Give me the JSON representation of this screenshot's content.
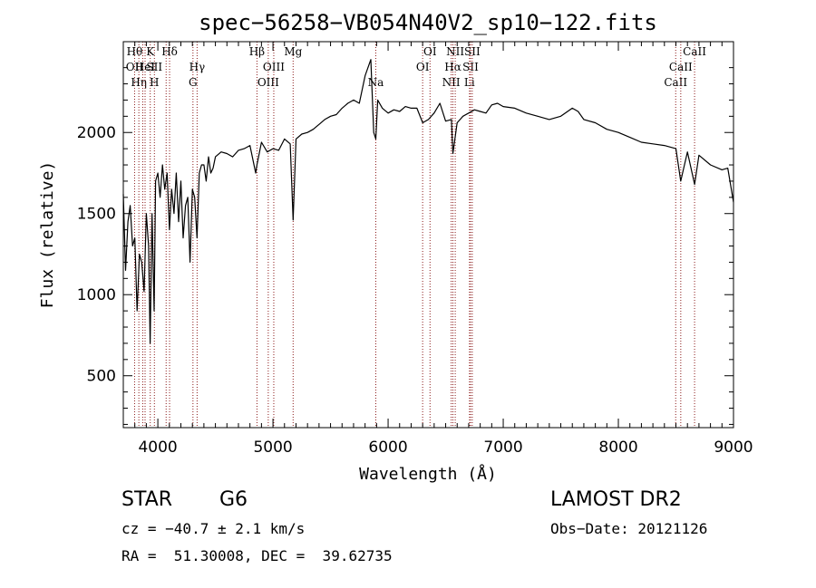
{
  "chart_data": {
    "type": "line",
    "title": "spec−56258−VB054N40V2_sp10−122.fits",
    "xlabel": "Wavelength (Å)",
    "ylabel": "Flux (relative)",
    "xlim": [
      3700,
      9000
    ],
    "ylim": [
      180,
      2560
    ],
    "xticks": [
      {
        "value": 4000,
        "label": "4000"
      },
      {
        "value": 5000,
        "label": "5000"
      },
      {
        "value": 6000,
        "label": "6000"
      },
      {
        "value": 7000,
        "label": "7000"
      },
      {
        "value": 8000,
        "label": "8000"
      },
      {
        "value": 9000,
        "label": "9000"
      }
    ],
    "yticks": [
      {
        "value": 500,
        "label": "500"
      },
      {
        "value": 1000,
        "label": "1000"
      },
      {
        "value": 1500,
        "label": "1500"
      },
      {
        "value": 2000,
        "label": "2000"
      }
    ],
    "grid": false,
    "legend": "none",
    "line_color": "#000000",
    "marker_color": "#8b1a1a",
    "series": [
      {
        "x": [
          3700,
          3720,
          3740,
          3760,
          3780,
          3800,
          3820,
          3840,
          3860,
          3880,
          3900,
          3920,
          3933,
          3950,
          3968,
          3980,
          4000,
          4020,
          4040,
          4060,
          4080,
          4101,
          4120,
          4140,
          4160,
          4180,
          4200,
          4220,
          4240,
          4260,
          4280,
          4300,
          4320,
          4340,
          4360,
          4380,
          4400,
          4420,
          4440,
          4460,
          4480,
          4500,
          4550,
          4600,
          4650,
          4700,
          4750,
          4800,
          4850,
          4861,
          4900,
          4950,
          5000,
          5050,
          5100,
          5150,
          5175,
          5200,
          5250,
          5300,
          5350,
          5400,
          5450,
          5500,
          5550,
          5600,
          5650,
          5700,
          5750,
          5800,
          5850,
          5875,
          5893,
          5910,
          5950,
          6000,
          6050,
          6100,
          6150,
          6200,
          6250,
          6300,
          6350,
          6400,
          6450,
          6500,
          6550,
          6563,
          6600,
          6650,
          6700,
          6750,
          6800,
          6850,
          6900,
          6950,
          7000,
          7100,
          7200,
          7300,
          7400,
          7500,
          7600,
          7650,
          7700,
          7800,
          7900,
          8000,
          8100,
          8200,
          8300,
          8400,
          8500,
          8542,
          8600,
          8662,
          8700,
          8800,
          8900,
          8950,
          9000
        ],
        "y": [
          1620,
          1150,
          1450,
          1550,
          1300,
          1350,
          900,
          1250,
          1200,
          1020,
          1500,
          1300,
          700,
          1500,
          900,
          1700,
          1750,
          1600,
          1800,
          1650,
          1750,
          1400,
          1650,
          1500,
          1750,
          1450,
          1700,
          1350,
          1550,
          1600,
          1200,
          1650,
          1600,
          1350,
          1750,
          1800,
          1800,
          1700,
          1850,
          1750,
          1780,
          1850,
          1880,
          1870,
          1850,
          1890,
          1900,
          1920,
          1750,
          1800,
          1940,
          1880,
          1900,
          1890,
          1960,
          1930,
          1460,
          1960,
          1990,
          2000,
          2020,
          2050,
          2080,
          2100,
          2110,
          2150,
          2180,
          2200,
          2180,
          2350,
          2450,
          2000,
          1960,
          2200,
          2150,
          2120,
          2140,
          2130,
          2160,
          2150,
          2150,
          2060,
          2080,
          2120,
          2180,
          2070,
          2080,
          1870,
          2060,
          2100,
          2120,
          2140,
          2130,
          2120,
          2170,
          2180,
          2160,
          2150,
          2120,
          2100,
          2080,
          2100,
          2150,
          2130,
          2080,
          2060,
          2020,
          2000,
          1970,
          1940,
          1930,
          1920,
          1900,
          1700,
          1880,
          1680,
          1860,
          1800,
          1770,
          1780,
          1570
        ]
      }
    ],
    "lines": [
      {
        "x": 3798,
        "top": "Hθ",
        "mid": "OII",
        "low": ""
      },
      {
        "x": 3835,
        "top": "",
        "mid": "",
        "low": "Hη"
      },
      {
        "x": 3869,
        "top": "",
        "mid": "",
        "low": ""
      },
      {
        "x": 3889,
        "top": "",
        "mid": "HeI",
        "low": ""
      },
      {
        "x": 3934,
        "top": "K",
        "mid": "",
        "low": ""
      },
      {
        "x": 3970,
        "top": "",
        "mid": "SII",
        "low": "H"
      },
      {
        "x": 4072,
        "top": "",
        "mid": "",
        "low": ""
      },
      {
        "x": 4102,
        "top": "Hδ",
        "mid": "",
        "low": ""
      },
      {
        "x": 4305,
        "top": "",
        "mid": "",
        "low": "G"
      },
      {
        "x": 4341,
        "top": "",
        "mid": "Hγ",
        "low": ""
      },
      {
        "x": 4861,
        "top": "Hβ",
        "mid": "",
        "low": ""
      },
      {
        "x": 4959,
        "top": "",
        "mid": "",
        "low": "OIII"
      },
      {
        "x": 5007,
        "top": "",
        "mid": "OIII",
        "low": ""
      },
      {
        "x": 5175,
        "top": "Mg",
        "mid": "",
        "low": ""
      },
      {
        "x": 5893,
        "top": "",
        "mid": "",
        "low": "Na"
      },
      {
        "x": 6300,
        "top": "",
        "mid": "OI",
        "low": ""
      },
      {
        "x": 6364,
        "top": "OI",
        "mid": "",
        "low": ""
      },
      {
        "x": 6548,
        "top": "",
        "mid": "",
        "low": "NII"
      },
      {
        "x": 6563,
        "top": "",
        "mid": "Hα",
        "low": ""
      },
      {
        "x": 6583,
        "top": "NII",
        "mid": "",
        "low": ""
      },
      {
        "x": 6707,
        "top": "",
        "mid": "",
        "low": "Li"
      },
      {
        "x": 6716,
        "top": "",
        "mid": "SII",
        "low": ""
      },
      {
        "x": 6731,
        "top": "SII",
        "mid": "",
        "low": ""
      },
      {
        "x": 8498,
        "top": "",
        "mid": "",
        "low": "CaII"
      },
      {
        "x": 8542,
        "top": "",
        "mid": "CaII",
        "low": ""
      },
      {
        "x": 8662,
        "top": "CaII",
        "mid": "",
        "low": ""
      }
    ]
  },
  "info": {
    "object_class": "STAR",
    "subclass": "G6",
    "survey": "LAMOST DR2",
    "cz": "cz = −40.7 ± 2.1 km/s",
    "obs_date": "Obs−Date: 20121126",
    "coords": "RA =  51.30008, DEC =  39.62735"
  }
}
